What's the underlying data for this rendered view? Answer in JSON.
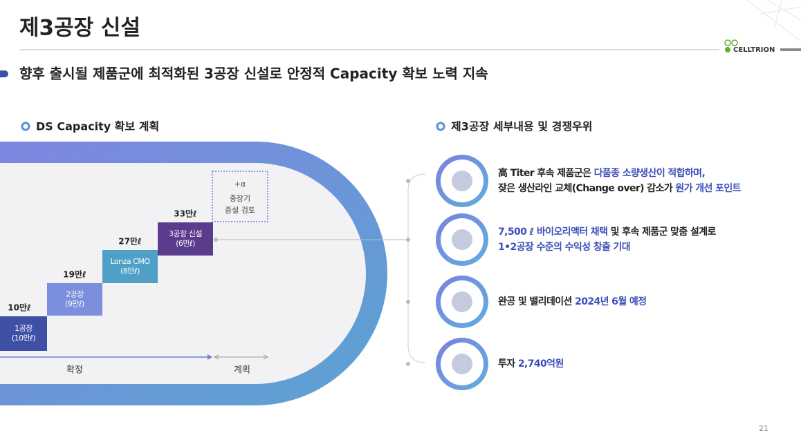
{
  "header": {
    "title": "제3공장 신설",
    "logo": "CELLTRION",
    "subtitle": "향후 출시될 제품군에 최적화된 3공장 신설로 안정적 Capacity 확보 노력 지속"
  },
  "left": {
    "heading": "DS Capacity 확보 계획",
    "steps": [
      {
        "total": "10만ℓ",
        "lines": [
          "1공장",
          "(10만ℓ)"
        ],
        "color": "#3e4fa6"
      },
      {
        "total": "19만ℓ",
        "lines": [
          "2공장",
          "(9만ℓ)"
        ],
        "color": "#7b8fdc"
      },
      {
        "total": "27만ℓ",
        "lines": [
          "Lonza CMO",
          "(8만ℓ)"
        ],
        "color": "#4f9fc6"
      },
      {
        "total": "33만ℓ",
        "lines": [
          "3공장 신설",
          "(6만ℓ)"
        ],
        "color": "#5a3b8c"
      }
    ],
    "plan_box": [
      "+α",
      "중장기",
      "증설 검토"
    ],
    "confirmed": "확정",
    "planned": "계획"
  },
  "right": {
    "heading": "제3공장 세부내용 및 경쟁우위",
    "items": [
      {
        "lines": [
          [
            {
              "text": "高 Titer 후속 제품군은 ",
              "highlight": false
            },
            {
              "text": "다품종 소량생산이 적합하며,",
              "highlight": true
            }
          ],
          [
            {
              "text": "잦은 생산라인 교체(Change over) 감소가 ",
              "highlight": false
            },
            {
              "text": "원가 개선 포인트",
              "highlight": true
            }
          ]
        ]
      },
      {
        "lines": [
          [
            {
              "text": "7,500 ℓ 바이오리액터 채택",
              "highlight": true
            },
            {
              "text": " 및 후속 제품군 맞춤 설계로",
              "highlight": false
            }
          ],
          [
            {
              "text": "1•2공장 수준의 수익성 창출 기대",
              "highlight": true
            }
          ]
        ]
      },
      {
        "lines": [
          [
            {
              "text": "완공 및 밸리데이션 ",
              "highlight": false
            },
            {
              "text": "2024년 6월 예정",
              "highlight": true
            }
          ]
        ]
      },
      {
        "lines": [
          [
            {
              "text": "투자 ",
              "highlight": false
            },
            {
              "text": "2,740억원",
              "highlight": true
            }
          ]
        ]
      }
    ]
  },
  "page_number": "21"
}
